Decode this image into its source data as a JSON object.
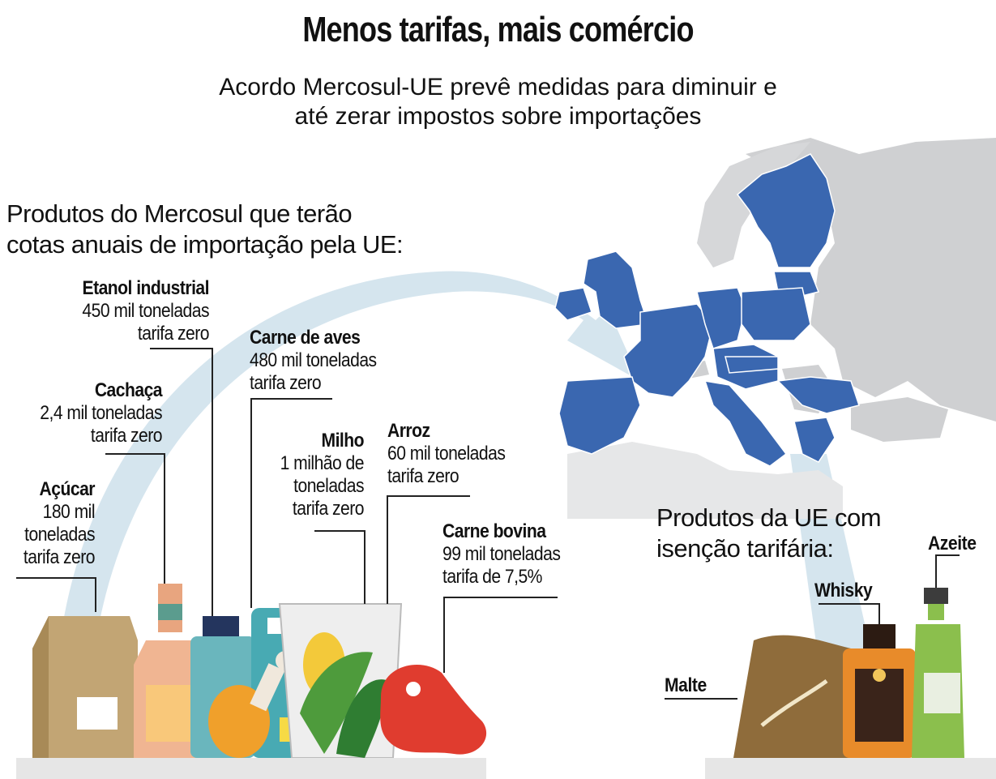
{
  "header": {
    "title": "Menos tarifas, mais comércio",
    "subtitle_line1": "Acordo Mercosul-UE prevê medidas para diminuir e",
    "subtitle_line2": "até zerar impostos sobre importações"
  },
  "mercosul_section": {
    "heading_line1": "Produtos do Mercosul que terão",
    "heading_line2": "cotas anuais de importação pela UE:",
    "products": {
      "etanol": {
        "name": "Etanol industrial",
        "line1": "450 mil toneladas",
        "line2": "tarifa zero"
      },
      "cachaca": {
        "name": "Cachaça",
        "line1": "2,4 mil toneladas",
        "line2": "tarifa zero"
      },
      "acucar": {
        "name": "Açúcar",
        "line1": "180 mil",
        "line2": "toneladas",
        "line3": "tarifa zero"
      },
      "aves": {
        "name": "Carne de aves",
        "line1": "480 mil toneladas",
        "line2": "tarifa zero"
      },
      "milho": {
        "name": "Milho",
        "line1": "1 milhão de",
        "line2": "toneladas",
        "line3": "tarifa zero"
      },
      "arroz": {
        "name": "Arroz",
        "line1": "60 mil toneladas",
        "line2": "tarifa zero"
      },
      "bovina": {
        "name": "Carne bovina",
        "line1": "99 mil toneladas",
        "line2": "tarifa de 7,5%"
      }
    }
  },
  "ue_section": {
    "heading_line1": "Produtos da UE com",
    "heading_line2": "isenção tarifária:",
    "products": {
      "azeite": "Azeite",
      "whisky": "Whisky",
      "malte": "Malte"
    }
  },
  "colors": {
    "eu_blue": "#3a67b0",
    "land_grey": "#cfd0d2",
    "arrow_blue": "#c9dde8"
  }
}
